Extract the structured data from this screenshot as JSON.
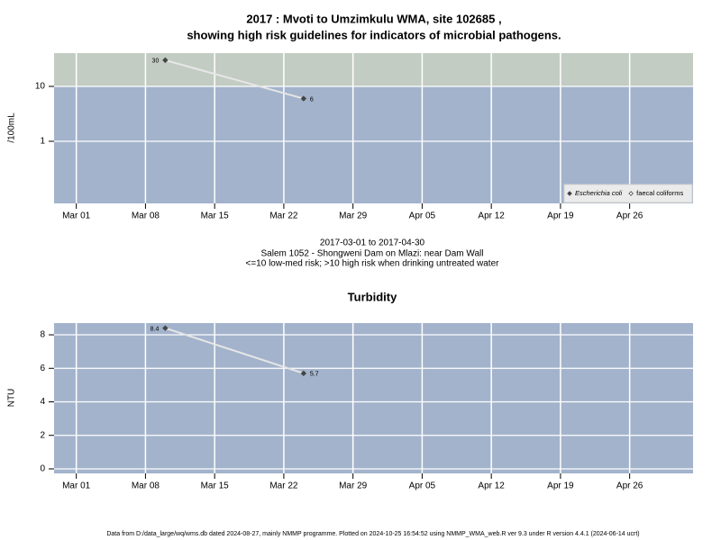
{
  "chart_data": [
    {
      "type": "line",
      "title": [
        "2017 : Mvoti to Umzimkulu WMA, site 102685 ,",
        "showing high risk guidelines for indicators of microbial pathogens."
      ],
      "subtitle": [
        "2017-03-01 to 2017-04-30",
        "Salem 1052 - Shongweni Dam on Mlazi: near Dam Wall",
        "<=10 low-med risk; >10 high risk when drinking untreated water"
      ],
      "ylabel": "/100mL",
      "ylog": true,
      "threshold": 10,
      "band_colors": [
        "#a3b3cc",
        "#c3ccc3"
      ],
      "x": [
        "2017-03-10",
        "2017-03-24"
      ],
      "series": [
        {
          "name": "Escherichia coli",
          "color": "#444444",
          "line_color": "#e6e6e6",
          "values": [
            30,
            6
          ]
        },
        {
          "name": "faecal coliforms",
          "color": "#444444",
          "line_color": "#e6e6e6",
          "values": [
            null,
            null
          ]
        }
      ],
      "xlim": [
        "2017-02-26T18:00",
        "2017-05-02T10:00"
      ],
      "xticks": [
        {
          "value": "2017-03-01",
          "label": "Mar 01"
        },
        {
          "value": "2017-03-08",
          "label": "Mar 08"
        },
        {
          "value": "2017-03-15",
          "label": "Mar 15"
        },
        {
          "value": "2017-03-22",
          "label": "Mar 22"
        },
        {
          "value": "2017-03-29",
          "label": "Mar 29"
        },
        {
          "value": "2017-04-05",
          "label": "Apr 05"
        },
        {
          "value": "2017-04-12",
          "label": "Apr 12"
        },
        {
          "value": "2017-04-19",
          "label": "Apr 19"
        },
        {
          "value": "2017-04-26",
          "label": "Apr 26"
        }
      ],
      "ylim": [
        0.074,
        40.4
      ],
      "yticks": [
        1,
        10
      ],
      "grid": true,
      "legend": "lower right"
    },
    {
      "type": "line",
      "title": "Turbidity",
      "ylabel": "NTU",
      "ylog": false,
      "band_colors": [
        "#a3b3cc"
      ],
      "x": [
        "2017-03-10",
        "2017-03-24"
      ],
      "series": [
        {
          "color": "#444444",
          "line_color": "#e6e6e6",
          "values": [
            8.4,
            5.7
          ]
        }
      ],
      "xlim": [
        "2017-02-26T18:00",
        "2017-05-02T10:00"
      ],
      "xticks": [
        {
          "value": "2017-03-01",
          "label": "Mar 01"
        },
        {
          "value": "2017-03-08",
          "label": "Mar 08"
        },
        {
          "value": "2017-03-15",
          "label": "Mar 15"
        },
        {
          "value": "2017-03-22",
          "label": "Mar 22"
        },
        {
          "value": "2017-03-29",
          "label": "Mar 29"
        },
        {
          "value": "2017-04-05",
          "label": "Apr 05"
        },
        {
          "value": "2017-04-12",
          "label": "Apr 12"
        },
        {
          "value": "2017-04-19",
          "label": "Apr 19"
        },
        {
          "value": "2017-04-26",
          "label": "Apr 26"
        }
      ],
      "ylim": [
        -0.27,
        8.7
      ],
      "yticks": [
        0,
        2,
        4,
        6,
        8
      ],
      "grid": true
    }
  ],
  "footer": "Data from D:/data_large/wq/wms.db dated 2024-08-27, mainly NMMP programme. Plotted on 2024-10-25 16:54:52 using NMMP_WMA_web.R ver 9.3 under R version 4.4.1 (2024-06-14 ucrt)"
}
